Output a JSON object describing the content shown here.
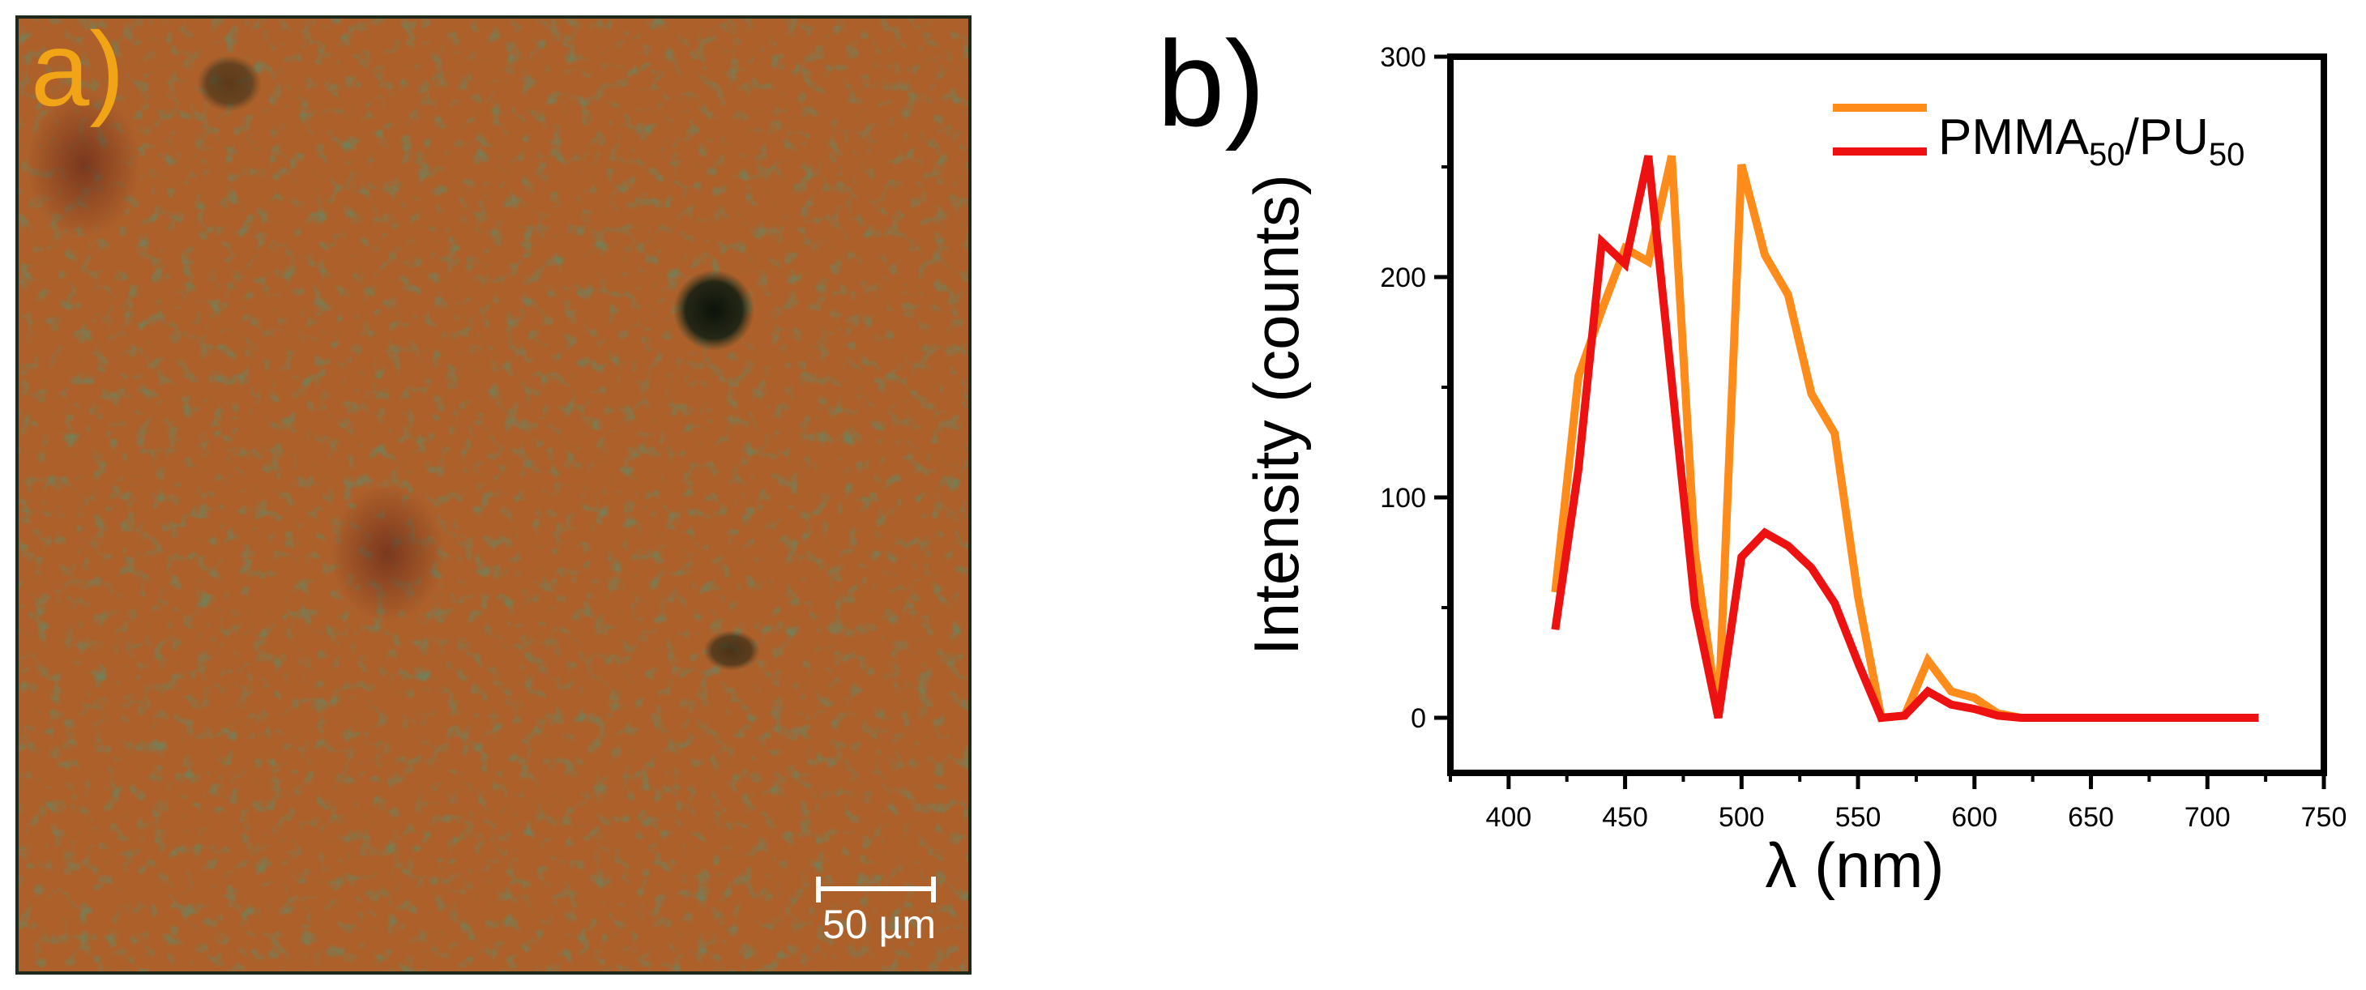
{
  "panel_a": {
    "label": "a)",
    "scale_bar_label": "50 µm",
    "colors": {
      "label": "#f0a416",
      "base": "#a8642a",
      "dark": "#2b3a24",
      "scale": "#ffffff"
    }
  },
  "panel_b": {
    "label": "b)"
  },
  "chart_data": {
    "type": "line",
    "title": "",
    "xlabel": "λ (nm)",
    "ylabel": "Intensity (counts)",
    "xlim": [
      375,
      750
    ],
    "ylim": [
      -25,
      300
    ],
    "xticks": [
      400,
      450,
      500,
      550,
      600,
      650,
      700,
      750
    ],
    "yticks": [
      0,
      100,
      200,
      300
    ],
    "grid": false,
    "legend_position": "top-right",
    "legend": {
      "main": "PMMA",
      "sub1": "50",
      "mid": "/PU",
      "sub2": "50"
    },
    "series": [
      {
        "name": "PMMA50/PU50 (orange)",
        "color": "#ff8c1a",
        "x": [
          420,
          430,
          440,
          450,
          460,
          470,
          480,
          490,
          500,
          510,
          520,
          530,
          540,
          550,
          560,
          570,
          580,
          590,
          600,
          610,
          620,
          640,
          660,
          680,
          700,
          722
        ],
        "y": [
          57,
          155,
          185,
          213,
          207,
          255,
          75,
          0,
          251,
          210,
          192,
          147,
          129,
          55,
          0,
          1,
          26,
          12,
          9,
          2,
          0,
          0,
          0,
          0,
          0,
          0
        ]
      },
      {
        "name": "PMMA50/PU50 (red)",
        "color": "#ee1111",
        "x": [
          420,
          430,
          440,
          450,
          460,
          470,
          480,
          490,
          500,
          510,
          520,
          530,
          540,
          550,
          560,
          570,
          580,
          590,
          600,
          610,
          620,
          640,
          660,
          680,
          700,
          722
        ],
        "y": [
          40,
          113,
          216,
          206,
          255,
          153,
          51,
          0,
          73,
          84,
          78,
          68,
          52,
          25,
          0,
          1,
          12,
          6,
          4,
          1,
          0,
          0,
          0,
          0,
          0,
          0
        ]
      }
    ]
  }
}
